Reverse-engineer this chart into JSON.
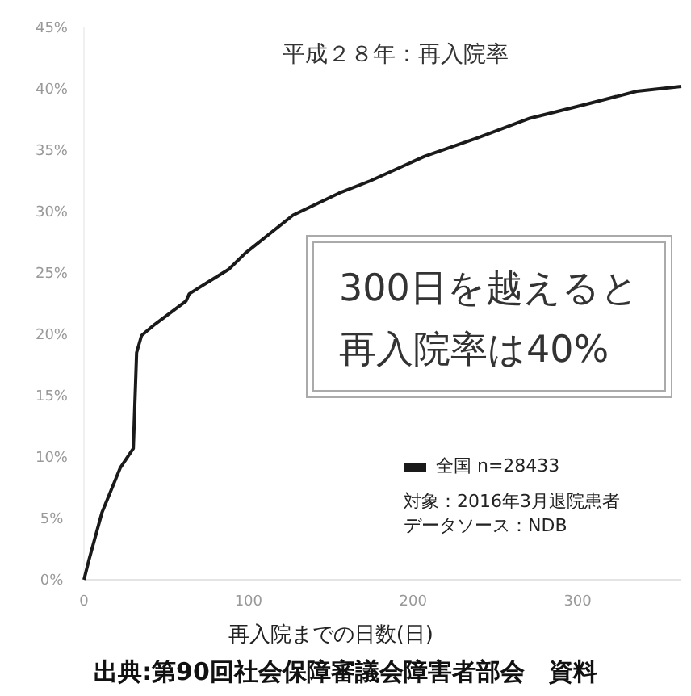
{
  "chart_data": {
    "type": "line",
    "title": "平成２８年：再入院率",
    "xlabel": "再入院までの日数(日)",
    "x": [
      0,
      3,
      11,
      22,
      30,
      32,
      35,
      43,
      62,
      64,
      88,
      98,
      127,
      155,
      174,
      207,
      239,
      271,
      304,
      336,
      363
    ],
    "series": [
      {
        "name": "全国 n=28433",
        "color": "#1a1a1a",
        "values": [
          0,
          1.6,
          5.5,
          9.1,
          10.7,
          18.5,
          19.9,
          20.8,
          22.7,
          23.3,
          25.3,
          26.6,
          29.7,
          31.5,
          32.5,
          34.5,
          36.0,
          37.6,
          38.7,
          39.8,
          40.2
        ]
      }
    ],
    "xlim": [
      0,
      363
    ],
    "xticks": [
      0,
      100,
      200,
      300
    ],
    "ylim": [
      0,
      45
    ],
    "yticks": [
      {
        "value": 0,
        "label": "0%"
      },
      {
        "value": 5,
        "label": "5%"
      },
      {
        "value": 10,
        "label": "10%"
      },
      {
        "value": 15,
        "label": "15%"
      },
      {
        "value": 20,
        "label": "20%"
      },
      {
        "value": 25,
        "label": "25%"
      },
      {
        "value": 30,
        "label": "30%"
      },
      {
        "value": 35,
        "label": "35%"
      },
      {
        "value": 40,
        "label": "40%"
      },
      {
        "value": 45,
        "label": "45%"
      }
    ],
    "legend": "bottom right",
    "marker": "none",
    "line_style": "solid",
    "grid": false,
    "annotations": [
      "300日を越えると",
      "再入院率は40%",
      "対象：2016年3月退院患者",
      "データソース：NDB",
      "出典:第90回社会保障審議会障害者部会　資料"
    ]
  }
}
